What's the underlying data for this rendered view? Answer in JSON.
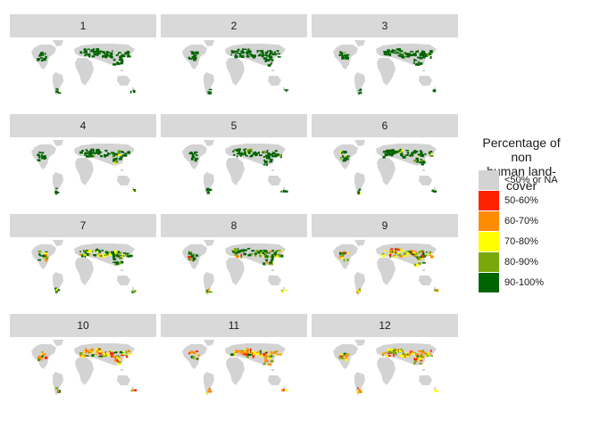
{
  "chart_data": {
    "type": "heatmap",
    "facet_labels": [
      "1",
      "2",
      "3",
      "4",
      "5",
      "6",
      "7",
      "8",
      "9",
      "10",
      "11",
      "12"
    ],
    "legend": {
      "title_lines": [
        "Percentage of non",
        "human land-cover"
      ],
      "entries": [
        {
          "label": "<50% or NA",
          "color": "#d3d3d3"
        },
        {
          "label": "50-60%",
          "color": "#ff2200"
        },
        {
          "label": "60-70%",
          "color": "#ff8c00"
        },
        {
          "label": "70-80%",
          "color": "#ffff00"
        },
        {
          "label": "80-90%",
          "color": "#7aa80a"
        },
        {
          "label": "90-100%",
          "color": "#006400"
        }
      ]
    },
    "highlight_mix": [
      {
        "class": [
          0,
          0,
          0,
          0,
          100
        ]
      },
      {
        "class": [
          0,
          0,
          0,
          0,
          100
        ]
      },
      {
        "class": [
          0,
          0,
          0,
          2,
          98
        ]
      },
      {
        "class": [
          0,
          0,
          4,
          6,
          90
        ]
      },
      {
        "class": [
          0,
          0,
          2,
          8,
          90
        ]
      },
      {
        "class": [
          0,
          2,
          8,
          10,
          80
        ]
      },
      {
        "class": [
          0,
          2,
          15,
          18,
          65
        ]
      },
      {
        "class": [
          2,
          6,
          18,
          24,
          50
        ]
      },
      {
        "class": [
          12,
          18,
          26,
          24,
          20
        ]
      },
      {
        "class": [
          18,
          28,
          26,
          18,
          10
        ]
      },
      {
        "class": [
          16,
          28,
          28,
          18,
          10
        ]
      },
      {
        "class": [
          14,
          26,
          30,
          20,
          10
        ]
      }
    ]
  }
}
